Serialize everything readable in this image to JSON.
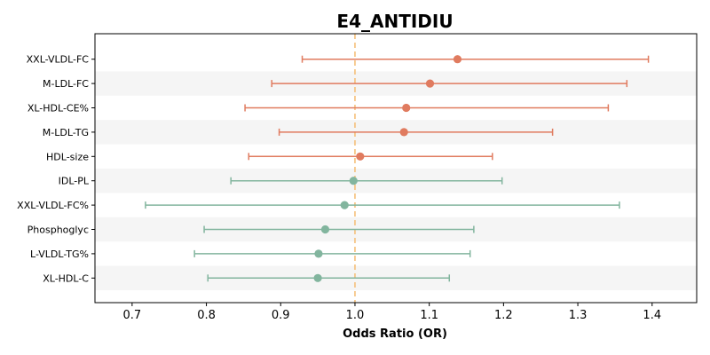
{
  "chart_data": {
    "type": "forest",
    "title": "E4_ANTIDIU",
    "xlabel": "Odds Ratio (OR)",
    "ylabel": "",
    "xlim": [
      0.65,
      1.46
    ],
    "xticks": [
      0.7,
      0.8,
      0.9,
      1.0,
      1.1,
      1.2,
      1.3,
      1.4
    ],
    "xtick_labels": [
      "0.7",
      "0.8",
      "0.9",
      "1.0",
      "1.1",
      "1.2",
      "1.3",
      "1.4"
    ],
    "reference_line": 1.0,
    "grid": false,
    "colors": {
      "positive": "#E07B5F",
      "negative": "#82B59E",
      "reference": "#F5C07A",
      "stripe": "#F5F5F5"
    },
    "rows": [
      {
        "label": "XXL-VLDL-FC",
        "or": 1.138,
        "lo": 0.929,
        "hi": 1.395
      },
      {
        "label": "M-LDL-FC",
        "or": 1.101,
        "lo": 0.888,
        "hi": 1.366
      },
      {
        "label": "XL-HDL-CE%",
        "or": 1.069,
        "lo": 0.852,
        "hi": 1.341
      },
      {
        "label": "M-LDL-TG",
        "or": 1.066,
        "lo": 0.898,
        "hi": 1.266
      },
      {
        "label": "HDL-size",
        "or": 1.007,
        "lo": 0.857,
        "hi": 1.185
      },
      {
        "label": "IDL-PL",
        "or": 0.998,
        "lo": 0.833,
        "hi": 1.198
      },
      {
        "label": "XXL-VLDL-FC%",
        "or": 0.986,
        "lo": 0.718,
        "hi": 1.356
      },
      {
        "label": "Phosphoglyc",
        "or": 0.96,
        "lo": 0.797,
        "hi": 1.16
      },
      {
        "label": "L-VLDL-TG%",
        "or": 0.951,
        "lo": 0.784,
        "hi": 1.155
      },
      {
        "label": "XL-HDL-C",
        "or": 0.95,
        "lo": 0.802,
        "hi": 1.127
      }
    ]
  }
}
